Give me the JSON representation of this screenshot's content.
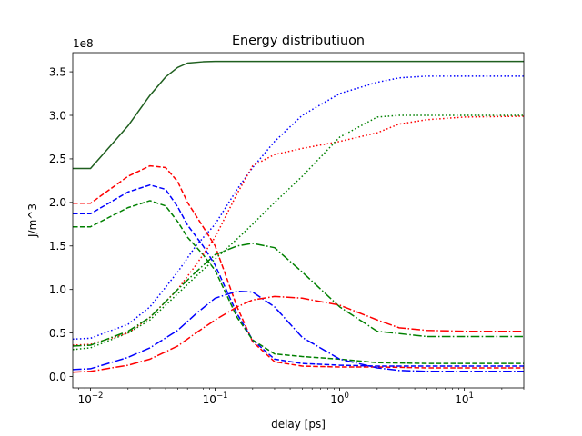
{
  "chart_data": {
    "type": "line",
    "title": "Energy distributiuon",
    "xlabel": "delay [ps]",
    "ylabel": "J/m^3",
    "offset_text": "1e8",
    "xscale": "log",
    "xlim": [
      0.0072,
      30
    ],
    "ylim": [
      -0.13,
      3.72
    ],
    "y_unit_multiplier": 100000000,
    "grid": false,
    "legend": "none",
    "x_ticks": [
      {
        "value": 0.01,
        "base": "10",
        "exp": "−2"
      },
      {
        "value": 0.1,
        "base": "10",
        "exp": "−1"
      },
      {
        "value": 1,
        "base": "10",
        "exp": "0"
      },
      {
        "value": 10,
        "base": "10",
        "exp": "1"
      }
    ],
    "y_ticks": [
      {
        "value": 0.0,
        "label": "0.0"
      },
      {
        "value": 0.5,
        "label": "0.5"
      },
      {
        "value": 1.0,
        "label": "1.0"
      },
      {
        "value": 1.5,
        "label": "1.5"
      },
      {
        "value": 2.0,
        "label": "2.0"
      },
      {
        "value": 2.5,
        "label": "2.5"
      },
      {
        "value": 3.0,
        "label": "3.0"
      },
      {
        "value": 3.5,
        "label": "3.5"
      }
    ],
    "series": [
      {
        "color": "#1f5f1f",
        "dash": "solid",
        "x": [
          0.0072,
          0.01,
          0.02,
          0.03,
          0.04,
          0.05,
          0.06,
          0.08,
          0.1,
          0.2,
          1,
          10,
          30
        ],
        "y": [
          2.39,
          2.39,
          2.88,
          3.23,
          3.44,
          3.55,
          3.6,
          3.615,
          3.62,
          3.62,
          3.62,
          3.62,
          3.62
        ]
      },
      {
        "color": "#ff0000",
        "dash": "dashed",
        "x": [
          0.0072,
          0.01,
          0.02,
          0.03,
          0.04,
          0.05,
          0.06,
          0.08,
          0.1,
          0.15,
          0.2,
          0.3,
          0.5,
          1,
          2,
          5,
          10,
          30
        ],
        "y": [
          1.99,
          1.99,
          2.3,
          2.42,
          2.4,
          2.24,
          2.0,
          1.72,
          1.5,
          0.8,
          0.4,
          0.17,
          0.12,
          0.11,
          0.11,
          0.1,
          0.1,
          0.1
        ]
      },
      {
        "color": "#0000ff",
        "dash": "dashed",
        "x": [
          0.0072,
          0.01,
          0.02,
          0.03,
          0.04,
          0.05,
          0.06,
          0.08,
          0.1,
          0.15,
          0.2,
          0.3,
          0.5,
          1,
          2,
          5,
          10,
          30
        ],
        "y": [
          1.87,
          1.87,
          2.12,
          2.2,
          2.15,
          1.95,
          1.74,
          1.5,
          1.28,
          0.72,
          0.42,
          0.2,
          0.15,
          0.13,
          0.12,
          0.12,
          0.12,
          0.12
        ]
      },
      {
        "color": "#008000",
        "dash": "dashed",
        "x": [
          0.0072,
          0.01,
          0.02,
          0.03,
          0.04,
          0.05,
          0.06,
          0.08,
          0.1,
          0.15,
          0.2,
          0.3,
          0.5,
          1,
          2,
          5,
          10,
          30
        ],
        "y": [
          1.72,
          1.72,
          1.94,
          2.02,
          1.96,
          1.78,
          1.6,
          1.4,
          1.22,
          0.68,
          0.42,
          0.26,
          0.23,
          0.2,
          0.16,
          0.15,
          0.15,
          0.15
        ]
      },
      {
        "color": "#0000ff",
        "dash": "dotted",
        "x": [
          0.0072,
          0.01,
          0.02,
          0.03,
          0.05,
          0.07,
          0.1,
          0.15,
          0.2,
          0.3,
          0.5,
          1,
          2,
          3,
          5,
          10,
          30
        ],
        "y": [
          0.43,
          0.44,
          0.6,
          0.8,
          1.2,
          1.5,
          1.75,
          2.15,
          2.4,
          2.7,
          3.0,
          3.25,
          3.38,
          3.43,
          3.45,
          3.45,
          3.45
        ]
      },
      {
        "color": "#ff0000",
        "dash": "dotted",
        "x": [
          0.0072,
          0.01,
          0.02,
          0.03,
          0.05,
          0.07,
          0.1,
          0.15,
          0.2,
          0.3,
          0.5,
          1,
          2,
          3,
          5,
          10,
          30
        ],
        "y": [
          0.36,
          0.37,
          0.5,
          0.68,
          1.0,
          1.28,
          1.6,
          2.1,
          2.42,
          2.55,
          2.62,
          2.7,
          2.8,
          2.9,
          2.95,
          2.98,
          2.99
        ]
      },
      {
        "color": "#008000",
        "dash": "dotted",
        "x": [
          0.0072,
          0.01,
          0.02,
          0.03,
          0.05,
          0.07,
          0.1,
          0.15,
          0.2,
          0.3,
          0.5,
          1,
          2,
          3,
          5,
          10,
          30
        ],
        "y": [
          0.31,
          0.33,
          0.5,
          0.65,
          0.95,
          1.15,
          1.35,
          1.58,
          1.75,
          2.0,
          2.3,
          2.75,
          2.98,
          3.0,
          3.0,
          3.0,
          3.0
        ]
      },
      {
        "color": "#008000",
        "dash": "dashdot",
        "x": [
          0.0072,
          0.01,
          0.02,
          0.03,
          0.05,
          0.07,
          0.1,
          0.15,
          0.2,
          0.3,
          0.5,
          1,
          2,
          5,
          10,
          30
        ],
        "y": [
          0.35,
          0.36,
          0.52,
          0.68,
          1.0,
          1.2,
          1.4,
          1.5,
          1.53,
          1.48,
          1.2,
          0.8,
          0.52,
          0.46,
          0.46,
          0.46
        ]
      },
      {
        "color": "#0000ff",
        "dash": "dashdot",
        "x": [
          0.0072,
          0.01,
          0.02,
          0.03,
          0.05,
          0.07,
          0.1,
          0.15,
          0.2,
          0.3,
          0.5,
          1,
          2,
          3,
          5,
          10,
          30
        ],
        "y": [
          0.08,
          0.09,
          0.22,
          0.33,
          0.53,
          0.72,
          0.9,
          0.98,
          0.97,
          0.8,
          0.45,
          0.2,
          0.1,
          0.07,
          0.06,
          0.06,
          0.06
        ]
      },
      {
        "color": "#ff0000",
        "dash": "dashdot",
        "x": [
          0.0072,
          0.01,
          0.02,
          0.03,
          0.05,
          0.07,
          0.1,
          0.15,
          0.2,
          0.3,
          0.5,
          1,
          2,
          3,
          5,
          10,
          30
        ],
        "y": [
          0.05,
          0.06,
          0.13,
          0.2,
          0.35,
          0.5,
          0.65,
          0.8,
          0.88,
          0.92,
          0.9,
          0.82,
          0.65,
          0.56,
          0.53,
          0.52,
          0.52
        ]
      }
    ]
  }
}
